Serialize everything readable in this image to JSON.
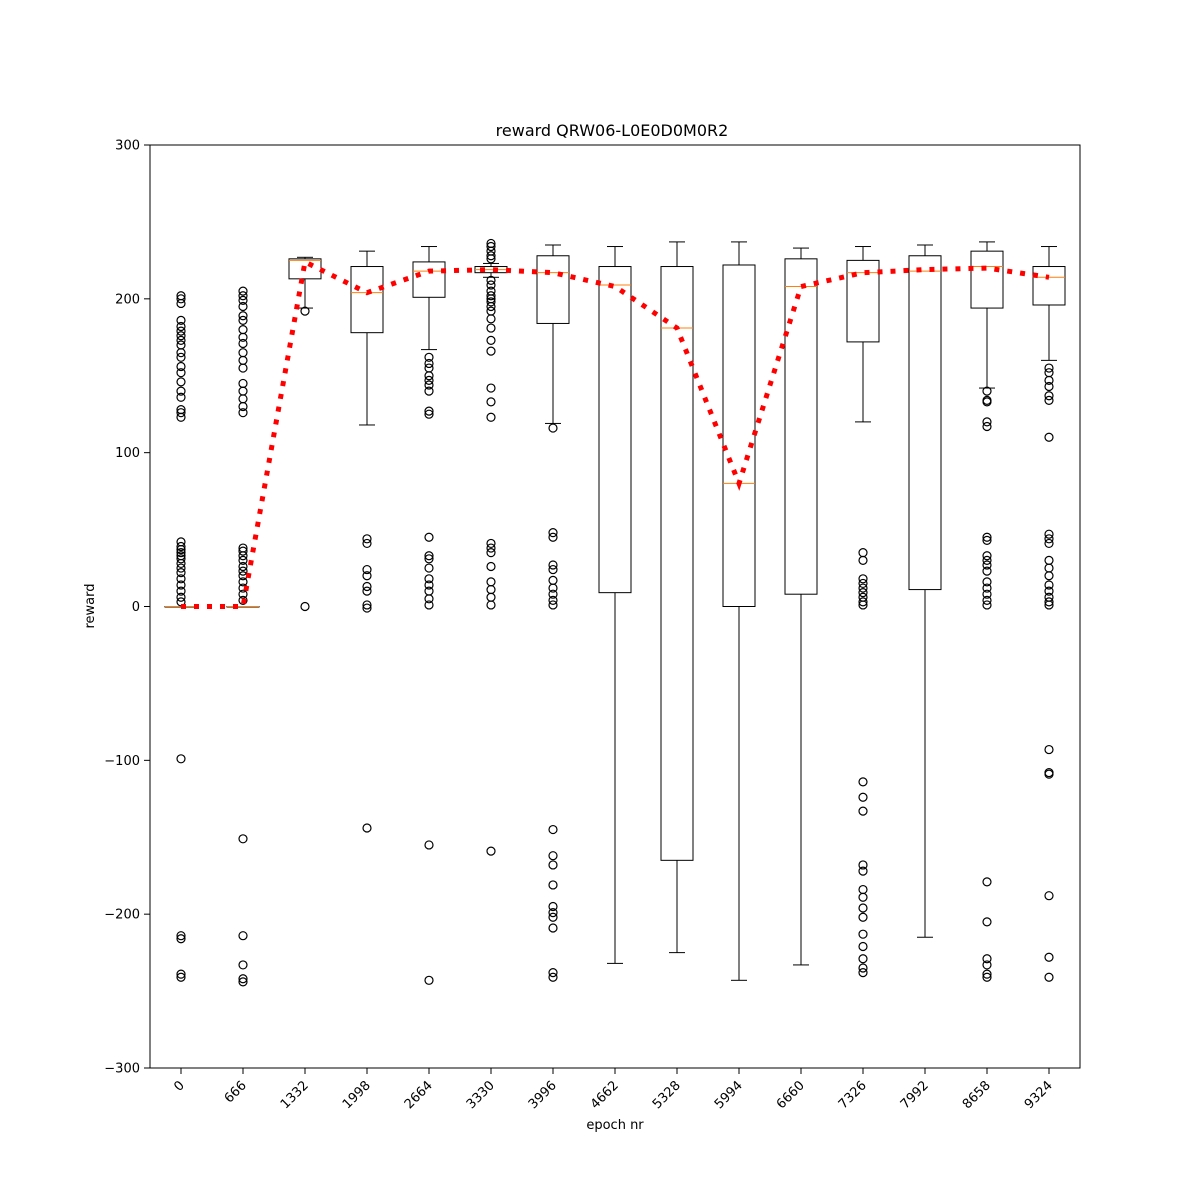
{
  "chart_data": {
    "type": "box",
    "title": "reward QRW06-L0E0D0M0R2",
    "xlabel": "epoch nr",
    "ylabel": "reward",
    "ylim": [
      -300,
      300
    ],
    "yticks": [
      -300,
      -200,
      -100,
      0,
      100,
      200,
      300
    ],
    "ytick_labels": [
      "−300",
      "−200",
      "−100",
      "0",
      "100",
      "200",
      "300"
    ],
    "categories": [
      "0",
      "666",
      "1332",
      "1998",
      "2664",
      "3330",
      "3996",
      "4662",
      "5328",
      "5994",
      "6660",
      "7326",
      "7992",
      "8658",
      "9324"
    ],
    "grid": false,
    "boxes": [
      {
        "q1": 0,
        "median": 0,
        "q3": 0,
        "whisker_low": 0,
        "whisker_high": 0,
        "outliers": [
          202,
          200,
          197,
          186,
          182,
          179,
          176,
          173,
          170,
          165,
          162,
          156,
          152,
          146,
          140,
          136,
          128,
          126,
          123,
          42,
          39,
          37,
          35,
          33,
          31,
          28,
          25,
          22,
          18,
          14,
          10,
          6,
          3,
          -99,
          -214,
          -216,
          -239,
          -241
        ]
      },
      {
        "q1": 0,
        "median": 0,
        "q3": 0,
        "whisker_low": 0,
        "whisker_high": 0,
        "outliers": [
          205,
          202,
          199,
          195,
          189,
          186,
          180,
          175,
          171,
          165,
          160,
          155,
          145,
          140,
          135,
          130,
          126,
          38,
          36,
          33,
          30,
          26,
          23,
          20,
          16,
          12,
          8,
          4,
          -151,
          -214,
          -233,
          -242,
          -244
        ]
      },
      {
        "q1": 213,
        "median": 225,
        "q3": 226,
        "whisker_low": 194,
        "whisker_high": 227,
        "outliers": [
          192,
          0
        ]
      },
      {
        "q1": 178,
        "median": 204,
        "q3": 221,
        "whisker_low": 118,
        "whisker_high": 231,
        "outliers": [
          44,
          41,
          24,
          20,
          13,
          10,
          1,
          -1,
          -144
        ]
      },
      {
        "q1": 201,
        "median": 218,
        "q3": 224,
        "whisker_low": 167,
        "whisker_high": 234,
        "outliers": [
          162,
          158,
          155,
          150,
          147,
          144,
          140,
          127,
          125,
          45,
          33,
          31,
          25,
          18,
          14,
          10,
          5,
          1,
          -155,
          -243
        ]
      },
      {
        "q1": 217,
        "median": 219,
        "q3": 221,
        "whisker_low": 214,
        "whisker_high": 223,
        "outliers": [
          236,
          234,
          231,
          228,
          226,
          212,
          209,
          205,
          202,
          200,
          198,
          195,
          192,
          187,
          181,
          173,
          166,
          142,
          133,
          123,
          41,
          38,
          35,
          26,
          16,
          11,
          6,
          1,
          -159
        ]
      },
      {
        "q1": 184,
        "median": 217,
        "q3": 228,
        "whisker_low": 119,
        "whisker_high": 235,
        "outliers": [
          116,
          48,
          45,
          27,
          24,
          17,
          12,
          8,
          4,
          1,
          -145,
          -162,
          -168,
          -181,
          -195,
          -199,
          -202,
          -209,
          -238,
          -241
        ]
      },
      {
        "q1": 9,
        "median": 209,
        "q3": 221,
        "whisker_low": -232,
        "whisker_high": 234,
        "outliers": []
      },
      {
        "q1": -165,
        "median": 181,
        "q3": 221,
        "whisker_low": -225,
        "whisker_high": 237,
        "outliers": []
      },
      {
        "q1": 0,
        "median": 80,
        "q3": 222,
        "whisker_low": -243,
        "whisker_high": 237,
        "outliers": []
      },
      {
        "q1": 8,
        "median": 208,
        "q3": 226,
        "whisker_low": -233,
        "whisker_high": 233,
        "outliers": []
      },
      {
        "q1": 172,
        "median": 217,
        "q3": 225,
        "whisker_low": 120,
        "whisker_high": 234,
        "outliers": [
          35,
          30,
          18,
          15,
          12,
          9,
          6,
          3,
          1,
          -114,
          -124,
          -133,
          -168,
          -172,
          -184,
          -189,
          -196,
          -202,
          -213,
          -221,
          -229,
          -235,
          -238
        ]
      },
      {
        "q1": 11,
        "median": 218,
        "q3": 228,
        "whisker_low": -215,
        "whisker_high": 235,
        "outliers": []
      },
      {
        "q1": 194,
        "median": 221,
        "q3": 231,
        "whisker_low": 142,
        "whisker_high": 237,
        "outliers": [
          140,
          134,
          133,
          120,
          117,
          45,
          43,
          33,
          30,
          27,
          23,
          16,
          12,
          8,
          4,
          1,
          -179,
          -205,
          -229,
          -233,
          -239,
          -241
        ]
      },
      {
        "q1": 196,
        "median": 214,
        "q3": 221,
        "whisker_low": 160,
        "whisker_high": 234,
        "outliers": [
          155,
          152,
          147,
          143,
          137,
          134,
          110,
          47,
          44,
          41,
          30,
          25,
          20,
          14,
          10,
          6,
          3,
          1,
          -93,
          -108,
          -109,
          -188,
          -228,
          -241
        ]
      }
    ],
    "mean_line": {
      "style": "dotted",
      "color": "#ff0000",
      "values": [
        0,
        0,
        224,
        204,
        218,
        219,
        217,
        208,
        181,
        80,
        208,
        217,
        219,
        220,
        214
      ]
    },
    "colors": {
      "box": "#000000",
      "median": "#ff7f0e",
      "mean_line": "#ff0000",
      "outlier": "#000000"
    }
  }
}
